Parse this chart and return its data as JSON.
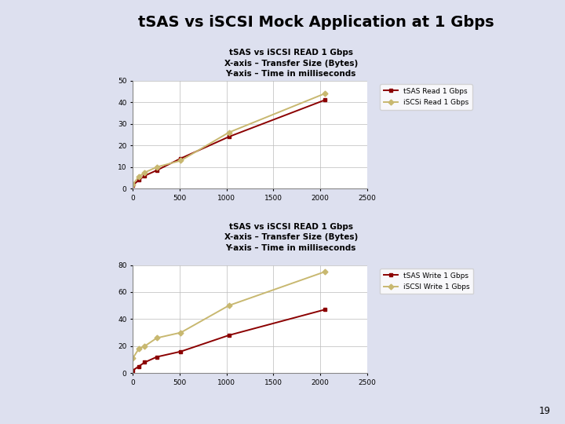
{
  "title": "tSAS vs iSCSI Mock Application at 1 Gbps",
  "title_fontsize": 14,
  "title_fontweight": "bold",
  "read_subtitle_line1": "tSAS vs iSCSI READ 1 Gbps",
  "read_subtitle_line2": "X-axis – Transfer Size (Bytes)",
  "read_subtitle_line3": "Y-axis – Time in milliseconds",
  "write_subtitle_line1": "tSAS vs iSCSI READ 1 Gbps",
  "write_subtitle_line2": "X-axis – Transfer Size (Bytes)",
  "write_subtitle_line3": "Y-axis – Time in milliseconds",
  "read_tsas_x": [
    0,
    64,
    128,
    256,
    512,
    1024,
    2048
  ],
  "read_tsas_y": [
    1.5,
    4,
    6,
    8.5,
    14,
    24,
    41
  ],
  "read_iscsi_x": [
    0,
    64,
    128,
    256,
    512,
    1024,
    2048
  ],
  "read_iscsi_y": [
    2,
    5.5,
    7.5,
    10,
    13,
    26,
    44
  ],
  "write_tsas_x": [
    0,
    64,
    128,
    256,
    512,
    1024,
    2048
  ],
  "write_tsas_y": [
    2,
    5,
    8,
    12,
    16,
    28,
    47
  ],
  "write_iscsi_x": [
    0,
    64,
    128,
    256,
    512,
    1024,
    2048
  ],
  "write_iscsi_y": [
    11,
    18,
    20,
    26,
    30,
    50,
    75
  ],
  "tsas_color": "#8b0000",
  "iscsi_color": "#c8b870",
  "read_legend_tsas": "tSAS Read 1 Gbps",
  "read_legend_iscsi": "iSCSi Read 1 Gbps",
  "write_legend_tsas": "tSAS Write 1 Gbps",
  "write_legend_iscsi": "iSCSI Write 1 Gbps",
  "read_ylim": [
    0,
    50
  ],
  "read_yticks": [
    0,
    10,
    20,
    30,
    40,
    50
  ],
  "write_ylim": [
    0,
    80
  ],
  "write_yticks": [
    0,
    20,
    40,
    60,
    80
  ],
  "xlim": [
    0,
    2500
  ],
  "xticks": [
    0,
    500,
    1000,
    1500,
    2000,
    2500
  ],
  "left_panel_color": "#2a2060",
  "right_panel_color": "#dde0ef",
  "white_panel_color": "#f5f5fa",
  "page_number": "19"
}
